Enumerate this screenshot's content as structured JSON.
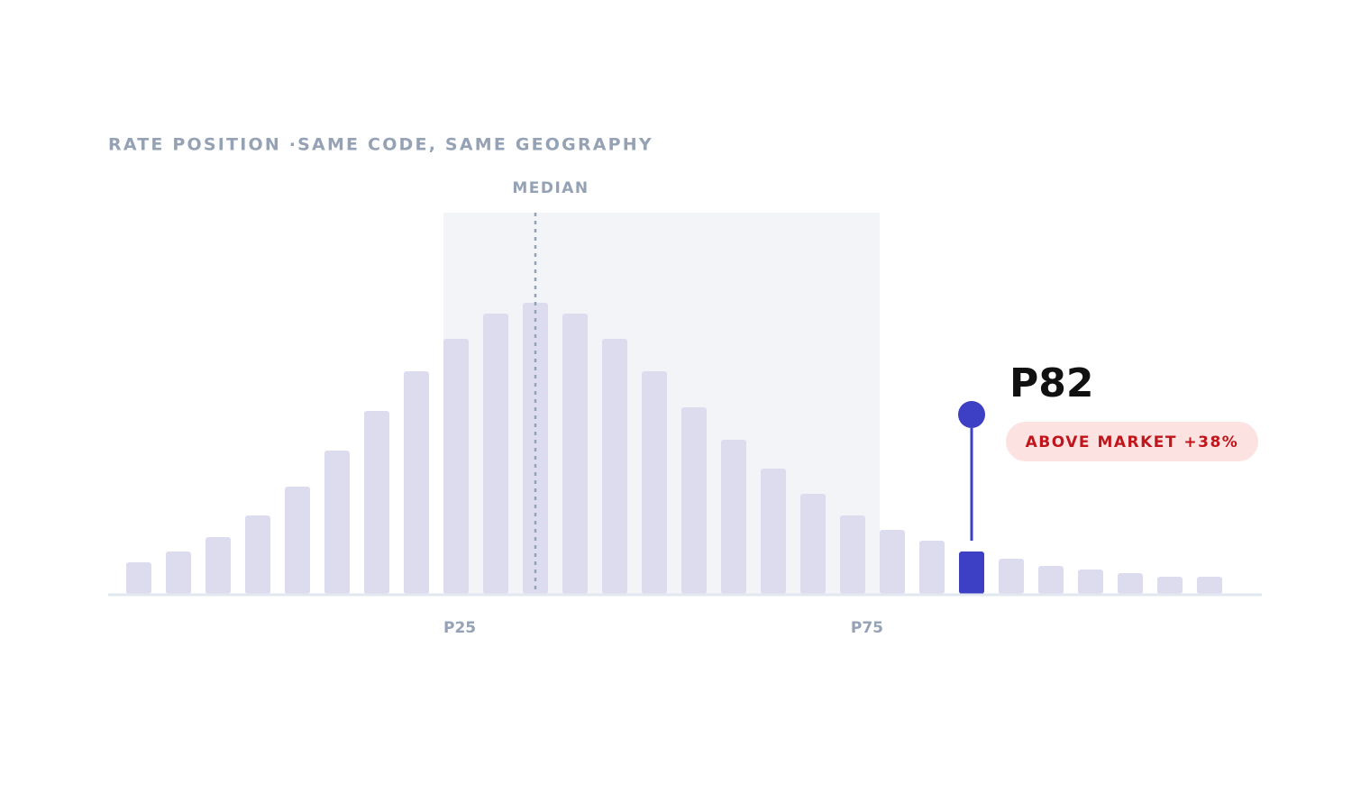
{
  "chart_data": {
    "type": "bar",
    "title": "RATE POSITION ·SAME CODE, SAME GEOGRAPHY",
    "values": [
      35,
      47,
      63,
      87,
      119,
      159,
      203,
      247,
      283,
      311,
      323,
      311,
      283,
      247,
      207,
      171,
      139,
      111,
      87,
      71,
      59,
      47,
      39,
      31,
      27,
      23,
      19,
      19
    ],
    "ylim": [
      0,
      400
    ],
    "color": "#dcdcee",
    "highlight_color": "#3d3fc4",
    "median_label": "MEDIAN",
    "median_index": 10,
    "p25_label": "P25",
    "p75_label": "P75",
    "iqr_index": [
      8,
      19
    ],
    "highlight": {
      "index": 21,
      "label": "P82",
      "badge": "ABOVE MARKET +38%"
    }
  }
}
